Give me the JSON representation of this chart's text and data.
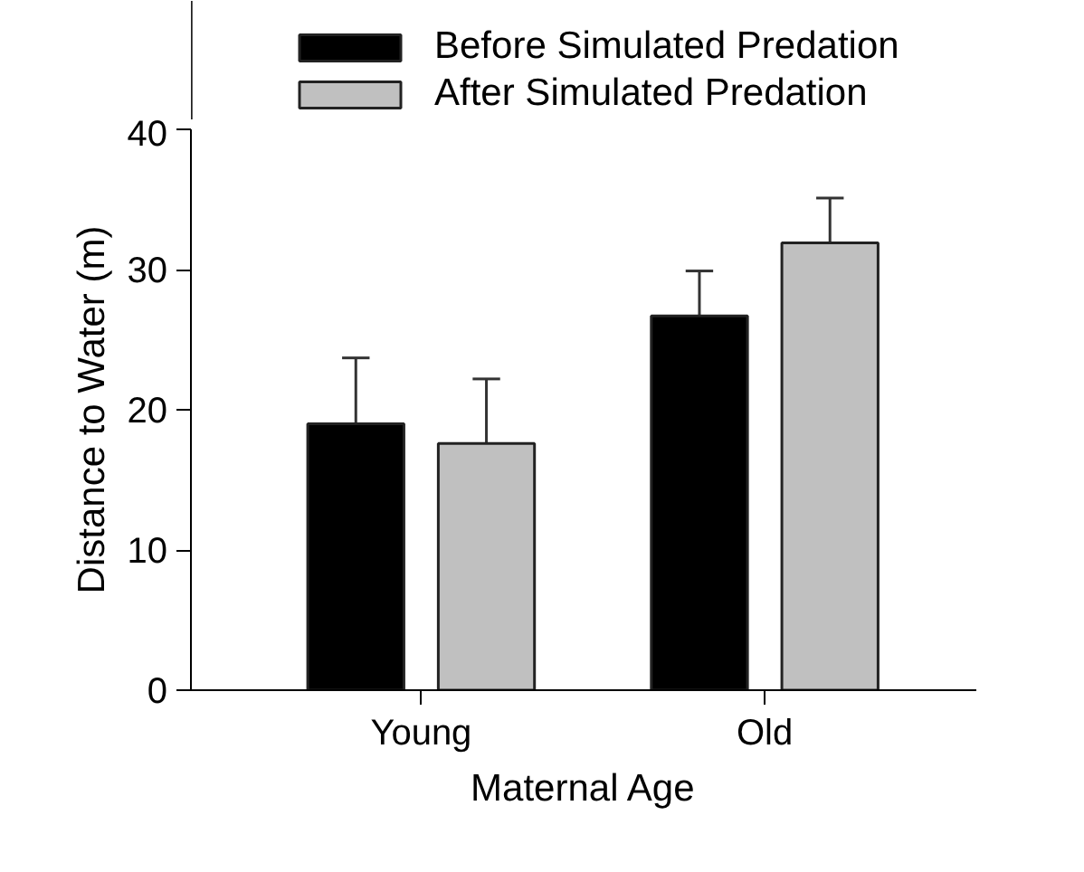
{
  "chart_data": {
    "type": "bar",
    "xlabel": "Maternal Age",
    "ylabel": "Distance to Water (m)",
    "categories": [
      "Young",
      "Old"
    ],
    "series": [
      {
        "name": "Before Simulated Predation",
        "color": "#000000",
        "values": [
          19.0,
          26.7
        ],
        "errors": [
          [
            19.0,
            23.7
          ],
          [
            26.7,
            29.9
          ]
        ]
      },
      {
        "name": "After Simulated Predation",
        "color": "#c0c0c0",
        "values": [
          17.6,
          31.9
        ],
        "errors": [
          [
            17.6,
            22.2
          ],
          [
            31.9,
            35.1
          ]
        ]
      }
    ],
    "ylim": [
      0,
      40
    ],
    "yticks": [
      0,
      10,
      20,
      30,
      40
    ],
    "grid": false,
    "legend": "top"
  }
}
